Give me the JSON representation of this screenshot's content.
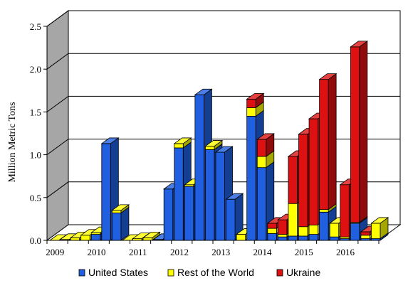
{
  "chart_data": {
    "type": "bar",
    "stacked": true,
    "three_d": true,
    "ylabel": "Million Metric Tons",
    "ylim": [
      0,
      2.5
    ],
    "yticks": [
      "0.0",
      "0.5",
      "1.0",
      "1.5",
      "2.0",
      "2.5"
    ],
    "x_year_labels": [
      "2009",
      "2010",
      "2011",
      "2012",
      "2013",
      "2014",
      "2015",
      "2016"
    ],
    "x_year_label_positions": [
      0.5,
      4.5,
      8.5,
      12.5,
      16.5,
      20.5,
      24.5,
      28.5
    ],
    "legend_position": "bottom",
    "series": [
      {
        "name": "United States",
        "color": "#1f5fe0",
        "values": [
          0,
          0,
          0,
          0,
          0.07,
          1.13,
          0.32,
          0,
          0,
          0,
          0.01,
          0.6,
          1.08,
          0.63,
          1.7,
          1.06,
          1.03,
          0.48,
          0,
          1.45,
          0.85,
          0.08,
          0.04,
          0.05,
          0.05,
          0.07,
          0.33,
          0.04,
          0.02,
          0.2,
          0.02,
          0.02
        ]
      },
      {
        "name": "Rest of the World",
        "color": "#ffff00",
        "values": [
          0,
          0.01,
          0.03,
          0.06,
          0.02,
          0,
          0.03,
          0,
          0.02,
          0.03,
          0,
          0,
          0.05,
          0.02,
          0,
          0.04,
          0,
          0,
          0.07,
          0.1,
          0.13,
          0.06,
          0.03,
          0.38,
          0.11,
          0.11,
          0.03,
          0.16,
          0.02,
          0.01,
          0.04,
          0.18
        ]
      },
      {
        "name": "Ukraine",
        "color": "#dd1111",
        "values": [
          0,
          0,
          0,
          0,
          0,
          0,
          0,
          0,
          0,
          0,
          0,
          0,
          0,
          0,
          0,
          0,
          0,
          0,
          0,
          0.1,
          0.2,
          0.06,
          0.17,
          0.55,
          1.08,
          1.24,
          1.52,
          0,
          0.61,
          2.05,
          0.04,
          0
        ]
      }
    ]
  }
}
